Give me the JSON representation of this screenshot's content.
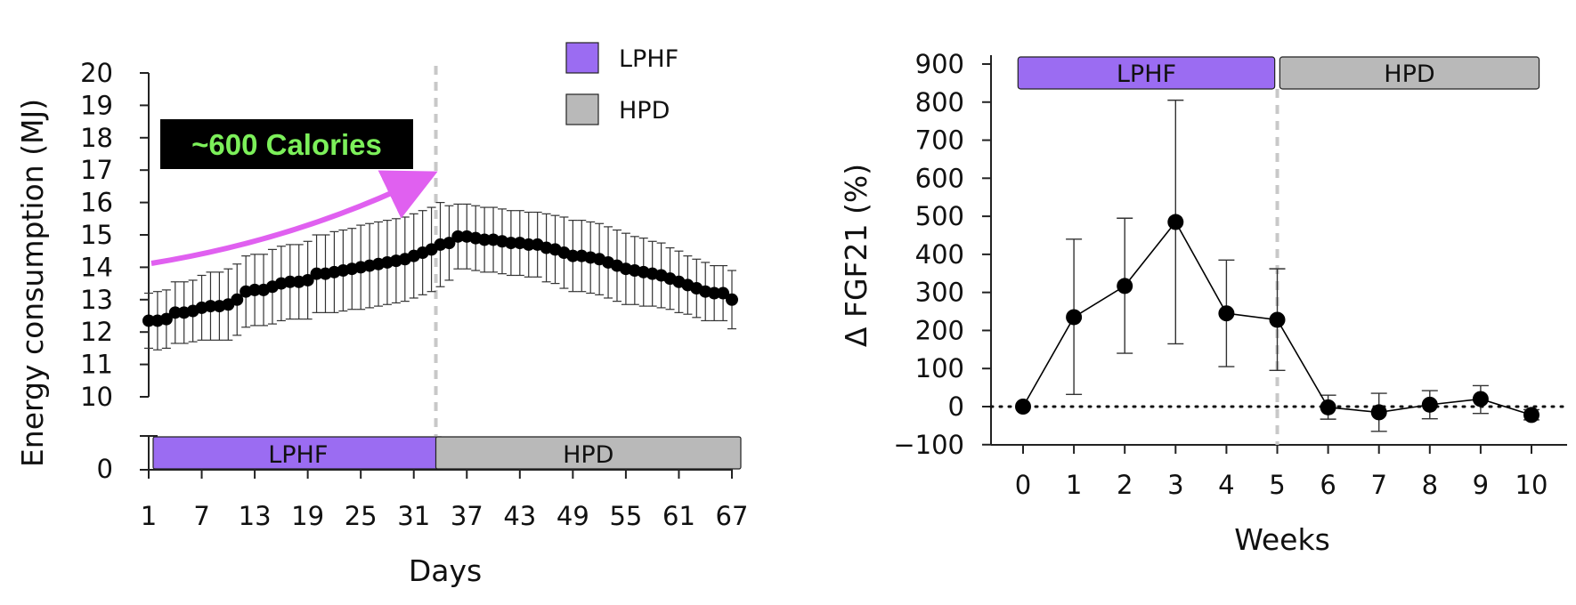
{
  "colors": {
    "lphf": "#9b6cf2",
    "hpd": "#b9b9b9",
    "arrow": "#e060f0",
    "callout_bg": "#000000",
    "callout_text": "#7cf05a",
    "marker": "#000000",
    "guide": "#c8c8c8"
  },
  "legend": {
    "items": [
      {
        "label": "LPHF",
        "color": "#9b6cf2"
      },
      {
        "label": "HPD",
        "color": "#b9b9b9"
      }
    ],
    "placement": "top-right of left panel"
  },
  "callout": {
    "text": "~600 Calories",
    "icon": "arrow-up-right-icon"
  },
  "chart_data": [
    {
      "type": "line",
      "xlabel": "Days",
      "ylabel": "Energy consumption (MJ)",
      "x_ticks": [
        "1",
        "7",
        "13",
        "19",
        "25",
        "31",
        "37",
        "43",
        "49",
        "55",
        "61",
        "67"
      ],
      "y_ticks": [
        "0",
        "10",
        "11",
        "12",
        "13",
        "14",
        "15",
        "16",
        "17",
        "18",
        "19",
        "20"
      ],
      "y_axis_break": {
        "lower": "0",
        "upper_range": [
          10,
          20
        ]
      },
      "xlim": [
        1,
        67
      ],
      "ylim": [
        10,
        20
      ],
      "divider_day": 33.5,
      "phases": [
        {
          "label": "LPHF",
          "start": 1,
          "end": 33
        },
        {
          "label": "HPD",
          "start": 34,
          "end": 67
        }
      ],
      "series": [
        {
          "x": [
            1,
            2,
            3,
            4,
            5,
            6,
            7,
            8,
            9,
            10,
            11,
            12,
            13,
            14,
            15,
            16,
            17,
            18,
            19,
            20,
            21,
            22,
            23,
            24,
            25,
            26,
            27,
            28,
            29,
            30,
            31,
            32,
            33,
            34,
            35,
            36,
            37,
            38,
            39,
            40,
            41,
            42,
            43,
            44,
            45,
            46,
            47,
            48,
            49,
            50,
            51,
            52,
            53,
            54,
            55,
            56,
            57,
            58,
            59,
            60,
            61,
            62,
            63,
            64,
            65,
            66,
            67
          ],
          "y": [
            12.35,
            12.35,
            12.4,
            12.6,
            12.6,
            12.65,
            12.75,
            12.8,
            12.8,
            12.85,
            13.0,
            13.25,
            13.3,
            13.3,
            13.4,
            13.5,
            13.55,
            13.55,
            13.6,
            13.8,
            13.8,
            13.85,
            13.9,
            13.95,
            14.0,
            14.05,
            14.1,
            14.15,
            14.2,
            14.25,
            14.35,
            14.45,
            14.55,
            14.7,
            14.75,
            14.95,
            14.95,
            14.9,
            14.85,
            14.85,
            14.8,
            14.75,
            14.75,
            14.7,
            14.7,
            14.6,
            14.55,
            14.45,
            14.35,
            14.35,
            14.3,
            14.25,
            14.15,
            14.05,
            13.95,
            13.9,
            13.85,
            13.8,
            13.75,
            13.65,
            13.55,
            13.45,
            13.35,
            13.25,
            13.2,
            13.2,
            13.0
          ],
          "error": [
            0.85,
            0.9,
            0.9,
            0.95,
            0.95,
            0.95,
            1.0,
            1.05,
            1.05,
            1.1,
            1.1,
            1.1,
            1.1,
            1.1,
            1.15,
            1.15,
            1.15,
            1.15,
            1.2,
            1.2,
            1.2,
            1.25,
            1.25,
            1.25,
            1.3,
            1.3,
            1.3,
            1.3,
            1.3,
            1.3,
            1.3,
            1.3,
            1.3,
            1.3,
            1.15,
            1.0,
            1.0,
            1.0,
            1.0,
            1.0,
            1.0,
            1.0,
            1.0,
            1.0,
            1.0,
            1.05,
            1.05,
            1.1,
            1.1,
            1.1,
            1.1,
            1.1,
            1.1,
            1.1,
            1.1,
            1.05,
            1.05,
            1.0,
            1.0,
            0.95,
            0.95,
            0.9,
            0.9,
            0.9,
            0.85,
            0.85,
            0.9
          ]
        }
      ]
    },
    {
      "type": "line",
      "xlabel": "Weeks",
      "ylabel": "Δ FGF21 (%)",
      "x_ticks": [
        "0",
        "1",
        "2",
        "3",
        "4",
        "5",
        "6",
        "7",
        "8",
        "9",
        "10"
      ],
      "y_ticks": [
        "−100",
        "0",
        "100",
        "200",
        "300",
        "400",
        "500",
        "600",
        "700",
        "800",
        "900"
      ],
      "xlim": [
        -0.5,
        10.7
      ],
      "ylim": [
        -100,
        900
      ],
      "divider_week": 5,
      "reference_line_y": 0,
      "phases": [
        {
          "label": "LPHF",
          "start": -0.1,
          "end": 4.95
        },
        {
          "label": "HPD",
          "start": 5.05,
          "end": 10.15
        }
      ],
      "series": [
        {
          "x": [
            0,
            1,
            2,
            3,
            4,
            5,
            6,
            7,
            8,
            9,
            10
          ],
          "y": [
            0,
            235,
            317,
            485,
            245,
            228,
            -2,
            -15,
            5,
            20,
            -22
          ],
          "err_high": [
            0,
            440,
            495,
            805,
            385,
            362,
            30,
            35,
            42,
            55,
            -8
          ],
          "err_low": [
            0,
            32,
            140,
            165,
            105,
            95,
            -33,
            -65,
            -32,
            -18,
            -35
          ]
        }
      ]
    }
  ]
}
